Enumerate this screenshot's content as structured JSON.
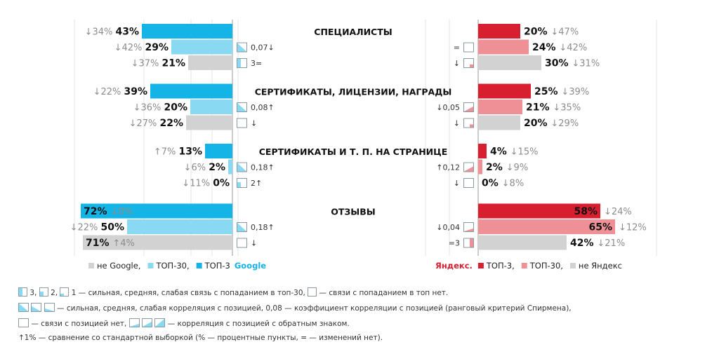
{
  "chart_data": {
    "type": "bar",
    "categories": [
      "СПЕЦИАЛИСТЫ",
      "СЕРТИФИКАТЫ, ЛИЦЕНЗИИ, НАГРАДЫ",
      "СЕРТИФИКАТЫ И Т. П. НА СТРАНИЦЕ",
      "ОТЗЫВЫ"
    ],
    "xlim": [
      0,
      100
    ],
    "google": {
      "legend_brand": "Google",
      "series": [
        {
          "name": "ТОП-3",
          "color": "#15b4e6",
          "values": [
            43,
            39,
            13,
            72
          ],
          "labels": [
            "43%",
            "39%",
            "13%",
            "72%"
          ],
          "changes": [
            "↓34%",
            "↓22%",
            "↑7%",
            "↓8%"
          ]
        },
        {
          "name": "ТОП-30",
          "color": "#8ad9f2",
          "values": [
            29,
            20,
            2,
            50
          ],
          "labels": [
            "29%",
            "20%",
            "2%",
            "50%"
          ],
          "changes": [
            "↓42%",
            "↓36%",
            "↓6%",
            "↓22%"
          ]
        },
        {
          "name": "не Google",
          "color": "#d2d2d2",
          "values": [
            21,
            22,
            0,
            71
          ],
          "labels": [
            "21%",
            "22%",
            "0%",
            "71%"
          ],
          "changes": [
            "↓37%",
            "↓27%",
            "↓11%",
            "↑4%"
          ]
        }
      ],
      "markers": [
        [
          {
            "shape": "corr-strong",
            "text": ""
          },
          {
            "shape": "corr-strong",
            "text": "0,07↓"
          },
          {
            "shape": "link-strong",
            "text": "3="
          }
        ],
        [
          {
            "shape": "",
            "text": ""
          },
          {
            "shape": "corr-strong",
            "text": "0,08↑"
          },
          {
            "shape": "none",
            "text": "↓"
          }
        ],
        [
          {
            "shape": "",
            "text": ""
          },
          {
            "shape": "corr-strong",
            "text": "0,18↑"
          },
          {
            "shape": "link-medium",
            "text": "2↑"
          }
        ],
        [
          {
            "shape": "",
            "text": ""
          },
          {
            "shape": "corr-strong",
            "text": "0,18↑"
          },
          {
            "shape": "none",
            "text": "↓"
          }
        ]
      ]
    },
    "yandex": {
      "legend_brand": "Яндекс.",
      "series": [
        {
          "name": "ТОП-3",
          "color": "#d71f30",
          "values": [
            20,
            25,
            4,
            58
          ],
          "labels": [
            "20%",
            "25%",
            "4%",
            "58%"
          ],
          "changes": [
            "↓47%",
            "↓39%",
            "↓15%",
            "↓24%"
          ]
        },
        {
          "name": "ТОП-30",
          "color": "#ef9096",
          "values": [
            24,
            21,
            2,
            65
          ],
          "labels": [
            "24%",
            "21%",
            "2%",
            "65%"
          ],
          "changes": [
            "↓42%",
            "↓35%",
            "↓9%",
            "↓12%"
          ]
        },
        {
          "name": "не Яндекс",
          "color": "#d2d2d2",
          "values": [
            30,
            20,
            0,
            42
          ],
          "labels": [
            "30%",
            "20%",
            "0%",
            "42%"
          ],
          "changes": [
            "↓31%",
            "↓29%",
            "↓8%",
            "↓21%"
          ]
        }
      ],
      "markers": [
        [
          {
            "shape": "",
            "text": ""
          },
          {
            "shape": "none",
            "text": "="
          },
          {
            "shape": "link-weak",
            "text": "↓"
          }
        ],
        [
          {
            "shape": "",
            "text": ""
          },
          {
            "shape": "corr-medium",
            "text": "↓0,05"
          },
          {
            "shape": "link-weak",
            "text": "↓"
          }
        ],
        [
          {
            "shape": "",
            "text": ""
          },
          {
            "shape": "corr-medium",
            "text": "↑0,12"
          },
          {
            "shape": "none",
            "text": "↓"
          }
        ],
        [
          {
            "shape": "",
            "text": ""
          },
          {
            "shape": "corr-weak",
            "text": "↓0,04"
          },
          {
            "shape": "link-strong",
            "text": "=3"
          }
        ]
      ]
    }
  },
  "notes": {
    "line1": {
      "part1": "3,",
      "part2": "2,",
      "part3": "1 — сильная, средняя, слабая связь с попаданием в топ-30,",
      "part4": "— связи с попаданием в топ нет."
    },
    "line2": {
      "part1": "— сильная, средняя, слабая корреляция с позицией, 0,08 — коэффициент корреляции с позицией (ранговый критерий Спирмена),"
    },
    "line3": {
      "part1": "— связи с позицией нет,",
      "part2": "— корреляция с позицией с обратным знаком."
    },
    "line4": {
      "part1": "↑1% — сравнение со стандартной выборкой (% — процентные пункты, = — изменений нет)."
    }
  },
  "colors": {
    "icon_stroke": "#8a9aa3",
    "icon_fill_google": "#8ad9f2",
    "icon_fill_yandex": "#ef9096",
    "change_text": "#8c8c8c",
    "axis": "#9a9a9a"
  }
}
